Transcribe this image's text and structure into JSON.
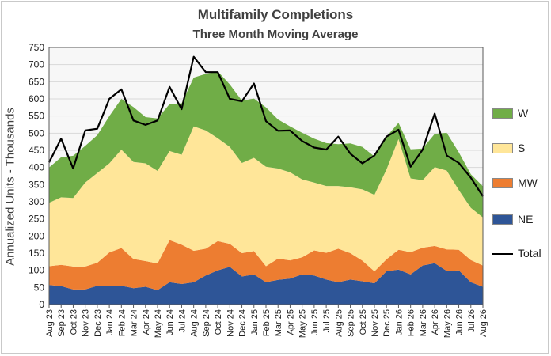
{
  "chart_data": {
    "type": "area",
    "title": "Multifamily  Completions",
    "subtitle": "Three Month Moving Average",
    "xlabel": "",
    "ylabel": "Annualized  Units  -  Thousands",
    "ylim": [
      0,
      750
    ],
    "ytick_step": 50,
    "grid": true,
    "stacked": true,
    "legend_position": "right",
    "categories": [
      "Aug 23",
      "Sep 23",
      "Oct 23",
      "Nov 23",
      "Dec 23",
      "Jan 24",
      "Feb 24",
      "Mar 24",
      "Apr 24",
      "May 24",
      "Jun 24",
      "Jul 24",
      "Aug 24",
      "Sep 24",
      "Oct 24",
      "Nov 24",
      "Dec 24",
      "Jan 25",
      "Feb 25",
      "Mar 25",
      "Apr 25",
      "May 25",
      "Jun 25",
      "Jul 25",
      "Aug 25",
      "Sep 25",
      "Oct 25",
      "Nov 25",
      "Dec 25",
      "Jan 26",
      "Feb 26",
      "Mar 26",
      "Apr 26",
      "May 26",
      "Jun 26",
      "Jul 26",
      "Aug 26"
    ],
    "series": [
      {
        "name": "NE",
        "color": "#2e5597",
        "values": [
          57,
          54,
          44,
          44,
          55,
          55,
          55,
          48,
          52,
          42,
          65,
          60,
          65,
          85,
          100,
          110,
          82,
          88,
          65,
          72,
          76,
          88,
          85,
          73,
          65,
          73,
          68,
          62,
          97,
          102,
          88,
          114,
          121,
          98,
          100,
          65,
          52
        ]
      },
      {
        "name": "MW",
        "color": "#ed7d31",
        "values": [
          55,
          62,
          67,
          67,
          67,
          97,
          110,
          85,
          75,
          78,
          123,
          115,
          92,
          78,
          85,
          67,
          68,
          68,
          47,
          62,
          53,
          50,
          73,
          78,
          98,
          77,
          60,
          35,
          35,
          58,
          65,
          52,
          50,
          63,
          60,
          65,
          62
        ]
      },
      {
        "name": "S",
        "color": "#ffe699",
        "values": [
          185,
          197,
          200,
          245,
          262,
          260,
          287,
          283,
          285,
          270,
          260,
          262,
          363,
          345,
          300,
          283,
          263,
          272,
          290,
          263,
          257,
          227,
          198,
          195,
          183,
          192,
          208,
          223,
          262,
          323,
          215,
          197,
          230,
          230,
          174,
          152,
          140
        ]
      },
      {
        "name": "W",
        "color": "#70ad47",
        "values": [
          103,
          117,
          123,
          107,
          110,
          138,
          148,
          160,
          135,
          153,
          137,
          150,
          142,
          165,
          195,
          182,
          182,
          173,
          173,
          143,
          134,
          136,
          128,
          125,
          122,
          128,
          124,
          112,
          96,
          47,
          85,
          92,
          97,
          110,
          110,
          98,
          91
        ]
      }
    ],
    "total": {
      "name": "Total",
      "color": "#000000",
      "values": [
        415,
        484,
        397,
        508,
        513,
        600,
        628,
        537,
        524,
        537,
        635,
        570,
        723,
        678,
        678,
        600,
        593,
        645,
        535,
        507,
        508,
        477,
        458,
        452,
        490,
        440,
        412,
        435,
        490,
        510,
        402,
        452,
        557,
        435,
        413,
        370,
        316
      ]
    }
  }
}
